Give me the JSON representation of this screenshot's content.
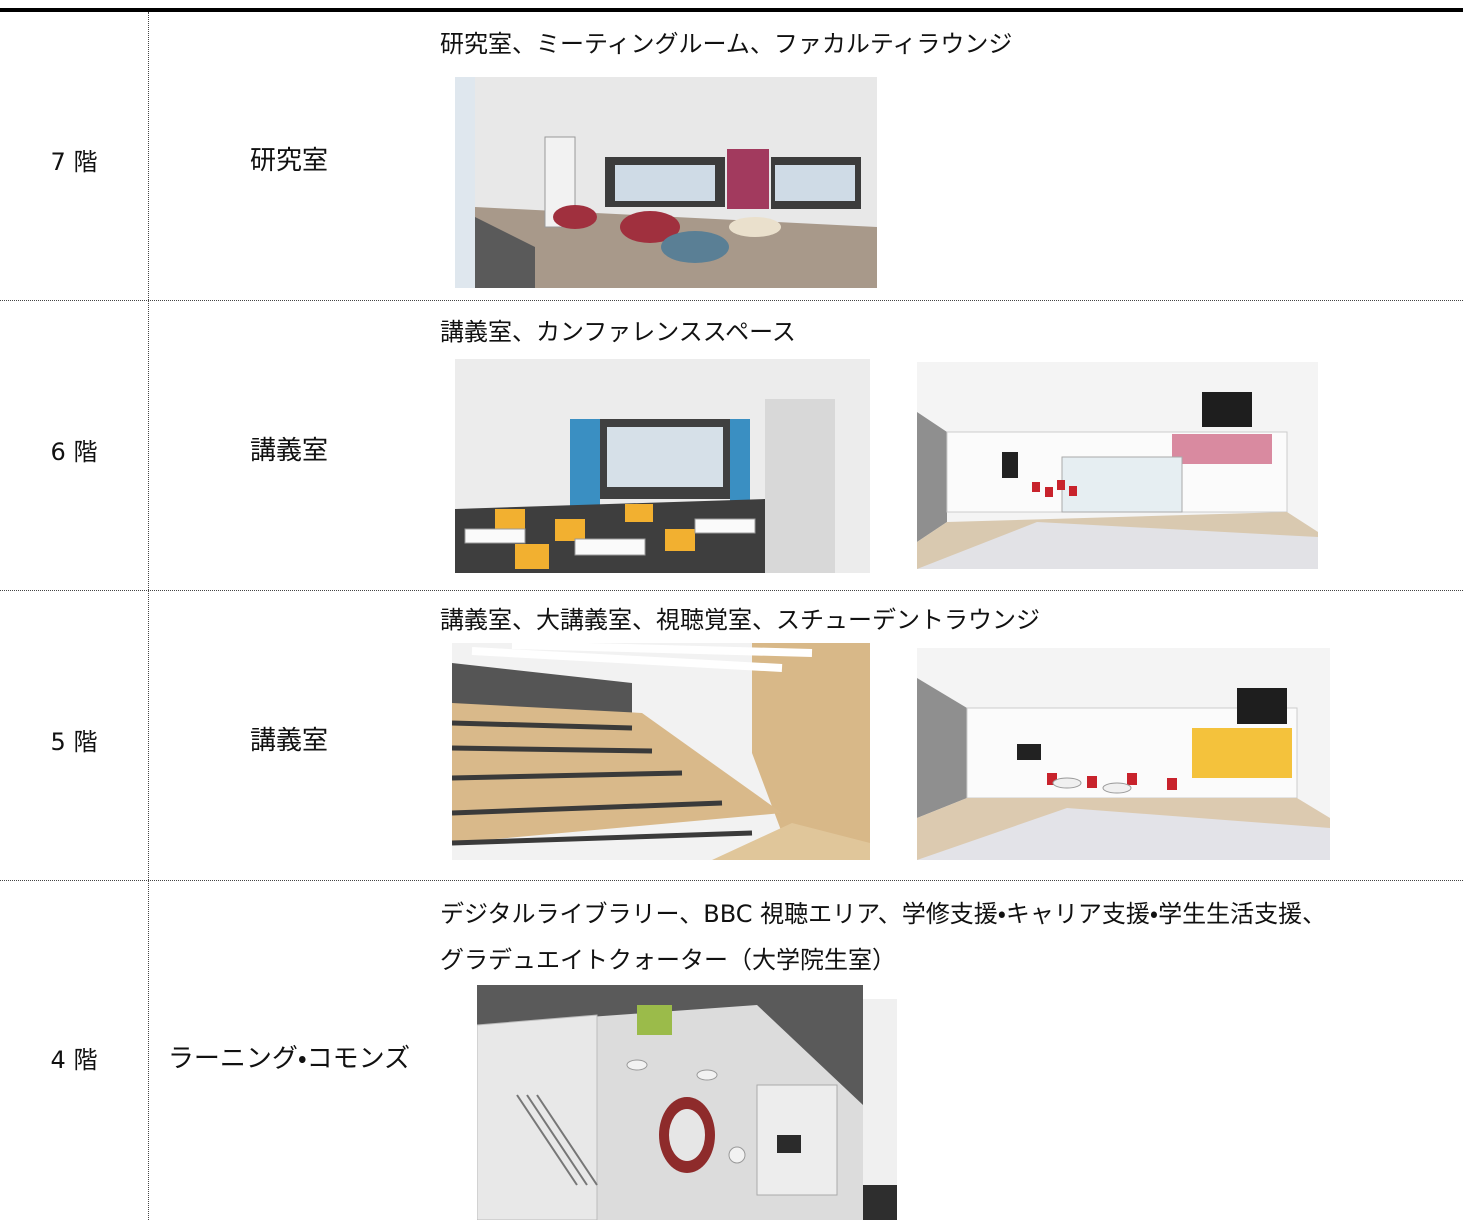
{
  "table": {
    "rows": [
      {
        "floor": "7 階",
        "room": "研究室",
        "description": [
          "研究室、ミーティングルーム、ファカルティラウンジ"
        ]
      },
      {
        "floor": "6 階",
        "room": "講義室",
        "description": [
          "講義室、カンファレンススペース"
        ]
      },
      {
        "floor": "5 階",
        "room": "講義室",
        "description": [
          "講義室、大講義室、視聴覚室、スチューデントラウンジ"
        ]
      },
      {
        "floor": "4 階",
        "room": "ラーニング・コモンズ",
        "description": [
          "デジタルライブラリー、BBC 視聴エリア、学修支援・キャリア支援・学生生活支援、",
          "グラデュエイトクォーター（大学院生室）"
        ]
      }
    ]
  }
}
